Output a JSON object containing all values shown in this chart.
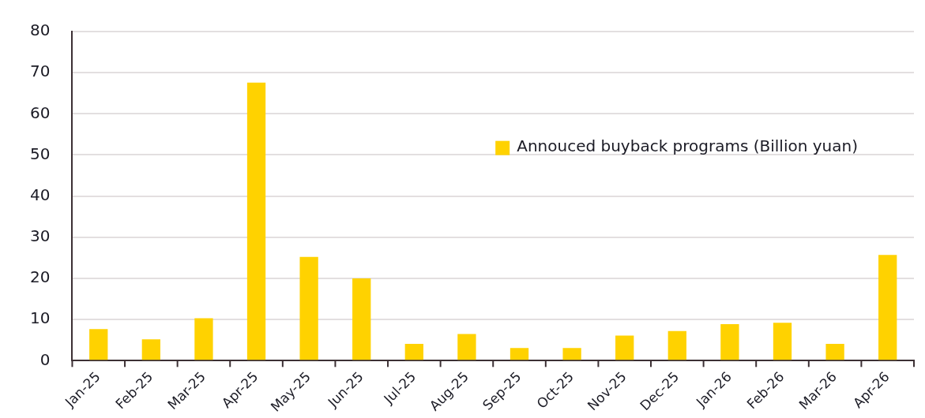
{
  "chart_data": {
    "type": "bar",
    "categories": [
      "Jan-25",
      "Feb-25",
      "Mar-25",
      "Apr-25",
      "May-25",
      "Jun-25",
      "Jul-25",
      "Aug-25",
      "Sep-25",
      "Oct-25",
      "Nov-25",
      "Dec-25",
      "Jan-26",
      "Feb-26",
      "Mar-26",
      "Apr-26"
    ],
    "series": [
      {
        "name": "Annouced buyback programs (Billion yuan)",
        "color": "#ffd200",
        "values": [
          7.7,
          5.2,
          10.3,
          67.6,
          25.2,
          20.0,
          4.1,
          6.5,
          3.1,
          3.1,
          6.1,
          7.2,
          8.9,
          9.2,
          4.1,
          25.7
        ]
      }
    ],
    "ylim": [
      0,
      80
    ],
    "yticks": [
      0,
      10,
      20,
      30,
      40,
      50,
      60,
      70,
      80
    ],
    "grid": "y",
    "legend": "right"
  }
}
